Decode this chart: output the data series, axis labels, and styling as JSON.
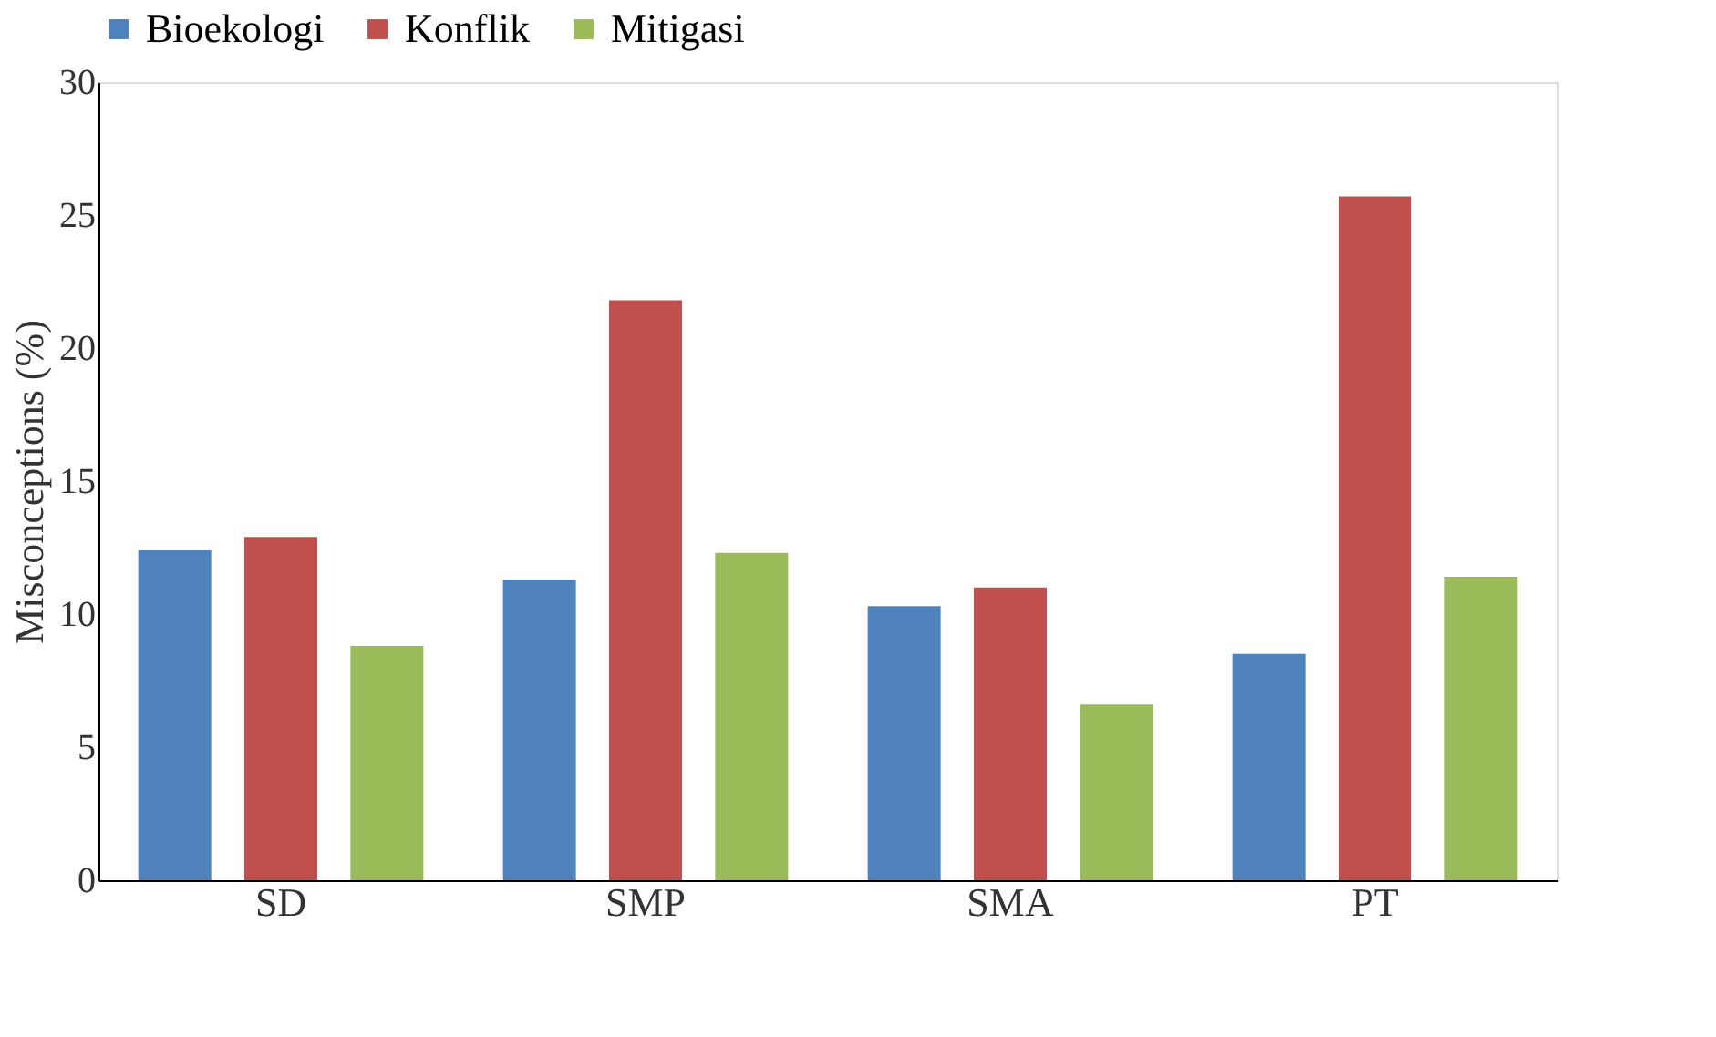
{
  "chart_data": {
    "type": "bar",
    "ylabel": "Misconceptions (%)",
    "categories": [
      "SD",
      "SMP",
      "SMA",
      "PT"
    ],
    "series": [
      {
        "name": "Bioekologi",
        "color": "#4f81bd",
        "values": [
          12.4,
          11.3,
          10.3,
          8.5
        ]
      },
      {
        "name": "Konflik",
        "color": "#c0504d",
        "values": [
          12.9,
          21.8,
          11.0,
          25.7
        ]
      },
      {
        "name": "Mitigasi",
        "color": "#9bbb59",
        "values": [
          8.8,
          12.3,
          6.6,
          11.4
        ]
      }
    ],
    "ylim": [
      0,
      30
    ],
    "yticks": [
      0,
      5,
      10,
      15,
      20,
      25,
      30
    ],
    "grid": false,
    "legend": "top"
  }
}
